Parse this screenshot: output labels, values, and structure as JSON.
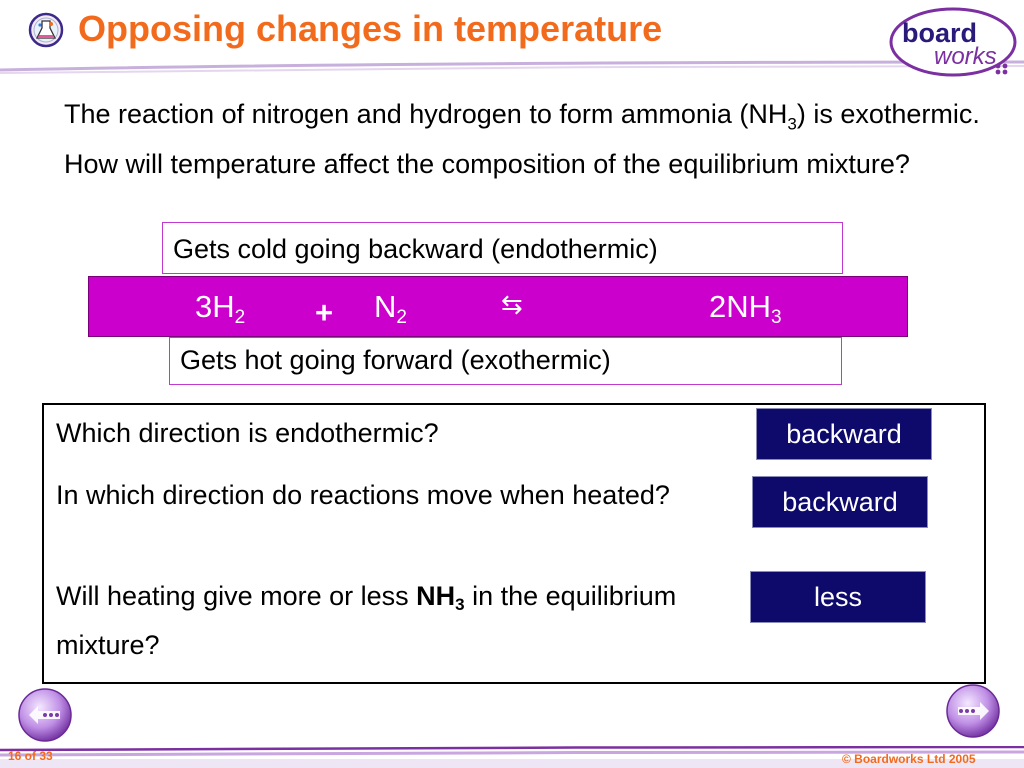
{
  "header": {
    "title": "Opposing changes in temperature",
    "title_color": "#f26b1d",
    "icon": "chemistry-flask-icon"
  },
  "logo": {
    "line1": "board",
    "line2": "works",
    "ring_color": "#7b2fa0",
    "text_color": "#2a1a7a"
  },
  "intro": {
    "text_before_sub": "The reaction of nitrogen and hydrogen to form ammonia (NH",
    "sub": "3",
    "text_after_sub": ") is exothermic. How will temperature affect the composition of the equilibrium mixture?"
  },
  "reaction": {
    "backward_caption": "Gets cold going backward (endothermic)",
    "forward_caption": "Gets hot going forward (exothermic)",
    "band_color": "#cc00cc",
    "reactant1": "3H",
    "reactant1_sub": "2",
    "plus": "+",
    "reactant2": "N",
    "reactant2_sub": "2",
    "arrow": "⇆",
    "product": "2NH",
    "product_sub": "3"
  },
  "questions": [
    {
      "text": "Which direction is endothermic?",
      "answer": "backward"
    },
    {
      "text": "In which direction do reactions move when heated?",
      "answer": "backward"
    },
    {
      "text_before": "Will heating give more or less ",
      "bold": "NH",
      "bold_sub": "3",
      "text_after": " in the equilibrium mixture?",
      "answer": "less"
    }
  ],
  "answer_color": "#0d0a6b",
  "navigation": {
    "prev_icon": "back-arrow-icon",
    "next_icon": "forward-arrow-icon"
  },
  "footer": {
    "page": "16 of 33",
    "copyright": "© Boardworks Ltd 2005"
  }
}
